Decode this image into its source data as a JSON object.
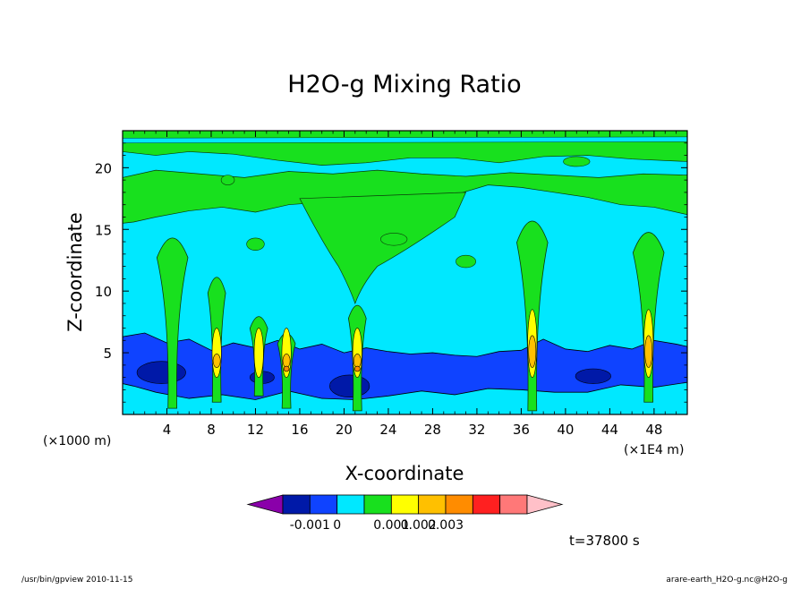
{
  "chart_data": {
    "type": "heatmap",
    "title": "H2O-g Mixing Ratio",
    "xlabel": "X-coordinate",
    "ylabel": "Z-coordinate",
    "x_unit": "(×1E4 m)",
    "y_unit": "(×1000 m)",
    "xlim": [
      0,
      51
    ],
    "ylim": [
      0,
      23
    ],
    "x_ticks": [
      4,
      8,
      12,
      16,
      20,
      24,
      28,
      32,
      36,
      40,
      44,
      48
    ],
    "y_ticks": [
      5,
      10,
      15,
      20
    ],
    "colorbar": {
      "colors": [
        "#8a00aa",
        "#0019a8",
        "#0f43ff",
        "#00e8ff",
        "#18e01e",
        "#ffff00",
        "#ffc000",
        "#ff8c00",
        "#ff2020",
        "#ff7878",
        "#ffc0c8"
      ],
      "tick_labels": [
        "-0.001",
        "0",
        "0.001",
        "0.002",
        "0.003"
      ],
      "tick_boundaries": [
        2,
        3,
        5,
        6,
        7
      ]
    },
    "palette": {
      "background": "#00e8ff",
      "moist_band": "#18e01e",
      "dry": "#0f43ff",
      "very_dry": "#0019a8",
      "core_yellow": "#ffff00",
      "core_orange": "#ffc000",
      "core_dark_orange": "#ff8c00"
    },
    "plumes": [
      {
        "x": 4.5,
        "top": 15.5,
        "base": 0.5,
        "max": "green"
      },
      {
        "x": 8.5,
        "top": 12.0,
        "base": 1.0,
        "max": "orange"
      },
      {
        "x": 12.3,
        "top": 8.5,
        "base": 1.5,
        "max": "yellow"
      },
      {
        "x": 14.8,
        "top": 7.0,
        "base": 0.5,
        "max": "dark-orange"
      },
      {
        "x": 21.2,
        "top": 9.5,
        "base": 0.3,
        "max": "dark-orange"
      },
      {
        "x": 37.0,
        "top": 17.0,
        "base": 0.3,
        "max": "orange"
      },
      {
        "x": 47.5,
        "top": 16.0,
        "base": 1.0,
        "max": "orange"
      }
    ]
  },
  "annotations": {
    "time": "t=37800 s",
    "footer_left": "/usr/bin/gpview   2010-11-15",
    "footer_right": "arare-earth_H2O-g.nc@H2O-g"
  }
}
